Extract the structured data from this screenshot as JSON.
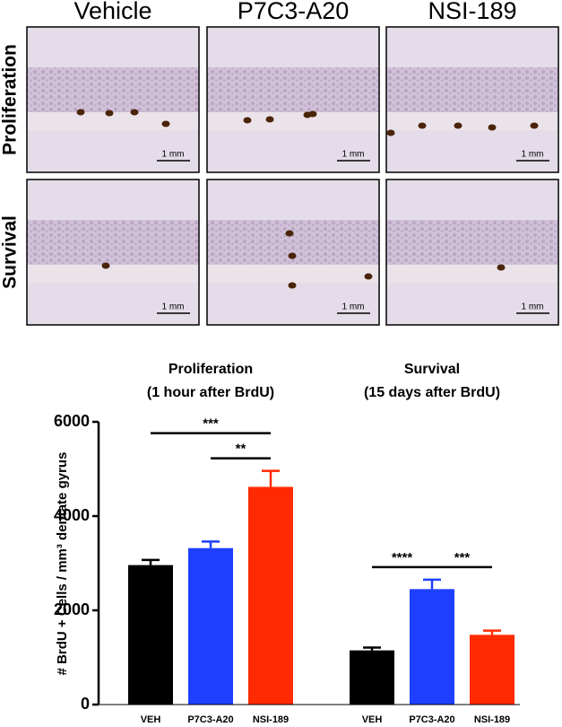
{
  "image_panel": {
    "columns": [
      "Vehicle",
      "P7C3-A20",
      "NSI-189"
    ],
    "rows": [
      "Proliferation",
      "Survival"
    ],
    "scale_bar": "1 mm"
  },
  "chart_data": {
    "type": "bar",
    "y_label": "# BrdU + Cells / mm³ dentate gyrus",
    "ylim": [
      0,
      6000
    ],
    "yticks": [
      0,
      2000,
      4000,
      6000
    ],
    "categories": [
      "VEH",
      "P7C3-A20",
      "NSI-189"
    ],
    "colors": [
      "#000000",
      "#1f3fff",
      "#ff2a00"
    ],
    "groups": [
      {
        "title": [
          "Proliferation",
          "(1 hour after BrdU)"
        ],
        "values": [
          2960,
          3320,
          4620
        ],
        "errors": [
          110,
          140,
          340
        ],
        "annotations": [
          {
            "text": "***",
            "from": 0,
            "to": 2
          },
          {
            "text": "**",
            "from": 1,
            "to": 2
          }
        ]
      },
      {
        "title": [
          "Survival",
          "(15 days after BrdU)"
        ],
        "values": [
          1150,
          2450,
          1480
        ],
        "errors": [
          60,
          200,
          90
        ],
        "annotations": [
          {
            "text": "****",
            "from": 0,
            "to": 1
          },
          {
            "text": "***",
            "from": 1,
            "to": 2
          }
        ]
      }
    ]
  }
}
